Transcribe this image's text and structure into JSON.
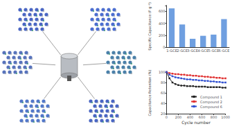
{
  "chart_data": [
    {
      "type": "bar",
      "y_label": "Specific Capacitance (F g⁻¹)",
      "categories": [
        "1-GCE",
        "2-GCE",
        "3-GCE",
        "4-GCE",
        "5-GCE",
        "6-GCE"
      ],
      "values": [
        650,
        380,
        140,
        190,
        210,
        470
      ],
      "color": "#6f9fe0",
      "ylim": [
        0,
        700
      ],
      "yticks": [
        0,
        200,
        400,
        600
      ],
      "grid": false
    },
    {
      "type": "line",
      "x_label": "Cycle number",
      "y_label": "Capacitance Retention (%)",
      "x": [
        0,
        50,
        100,
        150,
        200,
        250,
        300,
        350,
        400,
        450,
        500,
        550,
        600,
        650,
        700,
        750,
        800,
        850,
        900,
        950,
        1000
      ],
      "series": [
        {
          "name": "Compound 1",
          "color": "#222222",
          "values": [
            100,
            88,
            80,
            77,
            75,
            74,
            74,
            73,
            73,
            73,
            72,
            72,
            72,
            72,
            71,
            71,
            71,
            71,
            71,
            70,
            70
          ]
        },
        {
          "name": "Compound 2",
          "color": "#e03030",
          "values": [
            100,
            98,
            97,
            96,
            96,
            95,
            95,
            94,
            94,
            93,
            93,
            92,
            92,
            91,
            91,
            90,
            90,
            89,
            89,
            88,
            88
          ]
        },
        {
          "name": "Compound 6",
          "color": "#3050d0",
          "values": [
            100,
            95,
            92,
            90,
            89,
            88,
            87,
            86,
            86,
            85,
            85,
            84,
            84,
            83,
            83,
            82,
            82,
            81,
            81,
            80,
            80
          ]
        }
      ],
      "xlim": [
        0,
        1000
      ],
      "xticks": [
        0,
        200,
        400,
        600,
        800,
        1000
      ],
      "ylim": [
        20,
        100
      ],
      "yticks": [
        20,
        40,
        60,
        80,
        100
      ],
      "legend": "bottom-right",
      "marker": "square",
      "grid": false
    }
  ]
}
